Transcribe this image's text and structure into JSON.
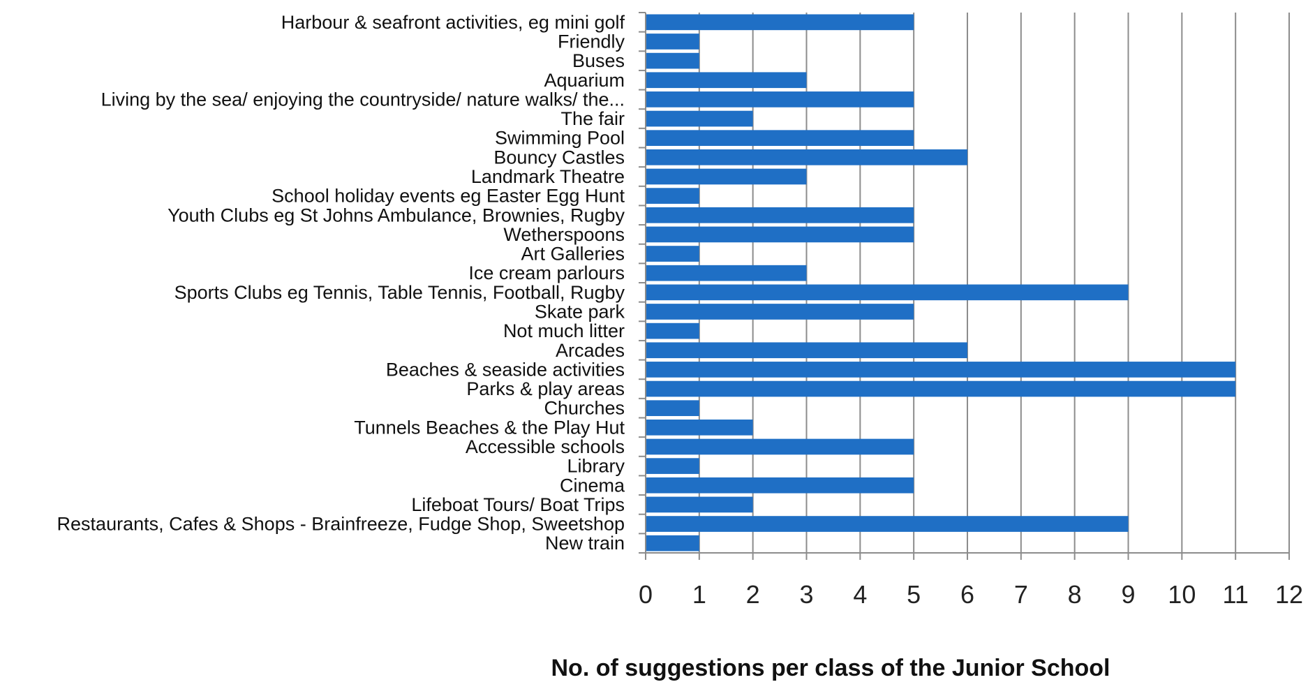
{
  "chart_data": {
    "type": "bar",
    "orientation": "horizontal",
    "categories": [
      "Harbour & seafront activities, eg mini golf",
      "Friendly",
      "Buses",
      "Aquarium",
      "Living by the sea/ enjoying the countryside/ nature walks/ the...",
      "The fair",
      "Swimming Pool",
      "Bouncy Castles",
      "Landmark Theatre",
      "School holiday events eg Easter Egg Hunt",
      "Youth Clubs eg St Johns Ambulance, Brownies, Rugby",
      "Wetherspoons",
      "Art Galleries",
      "Ice cream parlours",
      "Sports Clubs eg Tennis, Table Tennis, Football, Rugby",
      "Skate park",
      "Not much litter",
      "Arcades",
      "Beaches & seaside activities",
      "Parks & play areas",
      "Churches",
      "Tunnels Beaches & the Play Hut",
      "Accessible schools",
      "Library",
      "Cinema",
      "Lifeboat Tours/ Boat Trips",
      "Restaurants, Cafes & Shops - Brainfreeze, Fudge Shop, Sweetshop",
      "New train"
    ],
    "values": [
      5,
      1,
      1,
      3,
      5,
      2,
      5,
      6,
      3,
      1,
      5,
      5,
      1,
      3,
      9,
      5,
      1,
      6,
      11,
      11,
      1,
      2,
      5,
      1,
      5,
      2,
      9,
      1
    ],
    "xlim": [
      0,
      12
    ],
    "xticks": [
      "0",
      "1",
      "2",
      "3",
      "4",
      "5",
      "6",
      "7",
      "8",
      "9",
      "10",
      "11",
      "12"
    ],
    "xlabel": "No. of suggestions per class of the Junior School",
    "ylabel": "",
    "title": "",
    "grid": true,
    "bar_color": "#1f6fc5",
    "grid_color": "#8c8c8c",
    "axis_color": "#8c8c8c"
  }
}
